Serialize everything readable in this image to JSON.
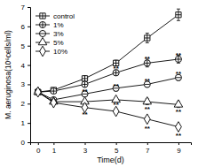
{
  "chart_data": {
    "type": "line",
    "x_label": "Time(d)",
    "y_label": "M. aeruginosa(10⁶cells/ml)",
    "x": [
      0,
      1,
      3,
      5,
      7,
      9
    ],
    "xlim": [
      -0.5,
      9.8
    ],
    "xticks": [
      0,
      1,
      3,
      5,
      7,
      9
    ],
    "ylim": [
      0,
      7
    ],
    "yticks": [
      0,
      1,
      2,
      3,
      4,
      5,
      6,
      7
    ],
    "legend": "top-left",
    "series": [
      {
        "name": "control",
        "color": "#000000",
        "marker": "square-cross",
        "line_style": "solid",
        "values": [
          2.6,
          2.7,
          3.3,
          4.1,
          5.4,
          6.6
        ],
        "errors": [
          0.1,
          0.1,
          0.15,
          0.15,
          0.25,
          0.3
        ]
      },
      {
        "name": "1%",
        "color": "#000000",
        "marker": "circle-cross",
        "line_style": "solid",
        "values": [
          2.6,
          2.65,
          3.0,
          3.6,
          4.1,
          4.3
        ],
        "errors": [
          0.1,
          0.1,
          0.15,
          0.15,
          0.2,
          0.2
        ]
      },
      {
        "name": "3%",
        "color": "#000000",
        "marker": "circle-minus",
        "line_style": "solid",
        "values": [
          2.6,
          2.2,
          2.5,
          2.8,
          3.0,
          3.35
        ],
        "errors": [
          0.1,
          0.1,
          0.1,
          0.15,
          0.15,
          0.15
        ]
      },
      {
        "name": "5%",
        "color": "#000000",
        "marker": "triangle",
        "line_style": "solid",
        "values": [
          2.6,
          2.1,
          2.1,
          2.2,
          2.1,
          1.95
        ],
        "errors": [
          0.1,
          0.1,
          0.1,
          0.1,
          0.15,
          0.15
        ]
      },
      {
        "name": "10%",
        "color": "#000000",
        "marker": "diamond",
        "line_style": "solid",
        "values": [
          2.6,
          2.05,
          1.8,
          1.6,
          1.2,
          0.8
        ],
        "errors": [
          0.1,
          0.1,
          0.1,
          0.1,
          0.1,
          0.1
        ]
      }
    ],
    "annotations": [
      {
        "text": "**",
        "x": 5,
        "y": 3.85
      },
      {
        "text": "**",
        "x": 7,
        "y": 4.35
      },
      {
        "text": "**",
        "x": 9,
        "y": 4.55
      },
      {
        "text": "**",
        "x": 3,
        "y": 2.65
      },
      {
        "text": "**",
        "x": 5,
        "y": 2.95
      },
      {
        "text": "**",
        "x": 7,
        "y": 3.2
      },
      {
        "text": "**",
        "x": 9,
        "y": 3.55
      },
      {
        "text": "**",
        "x": 3,
        "y": 1.45
      },
      {
        "text": "**",
        "x": 5,
        "y": 1.95
      },
      {
        "text": "**",
        "x": 7,
        "y": 1.75
      },
      {
        "text": "**",
        "x": 9,
        "y": 1.6
      },
      {
        "text": "**",
        "x": 7,
        "y": 0.75
      },
      {
        "text": "**",
        "x": 9,
        "y": 0.35
      }
    ]
  }
}
